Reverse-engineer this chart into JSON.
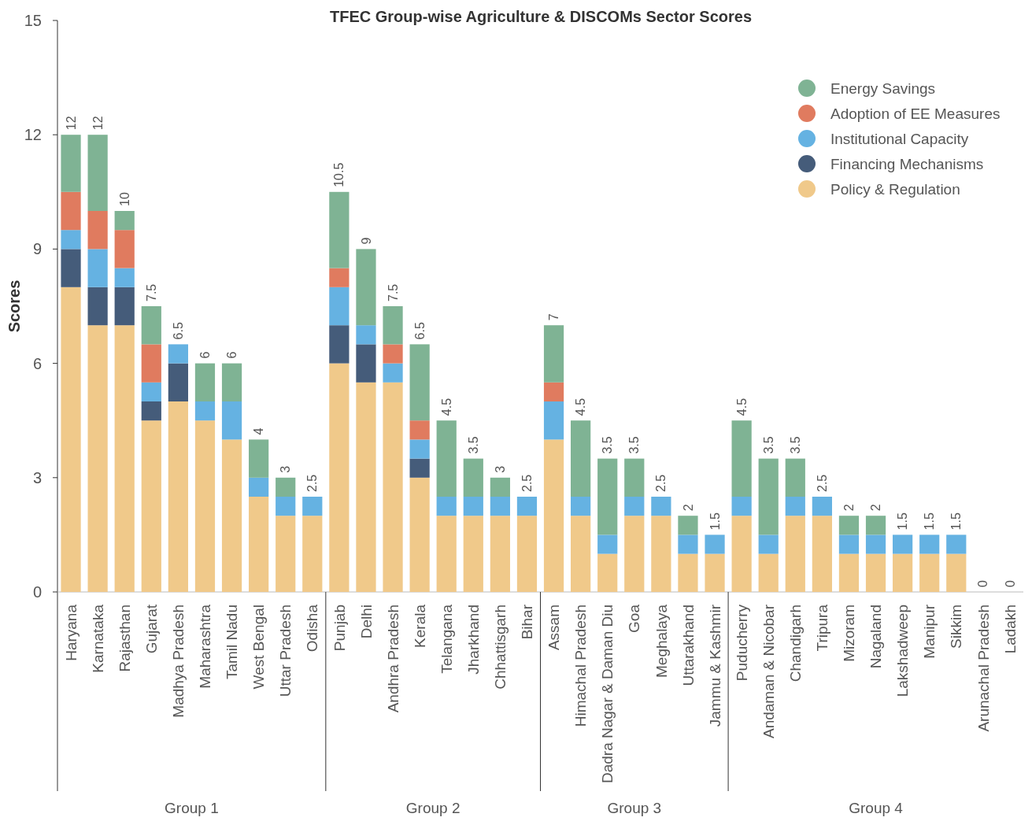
{
  "chart_data": {
    "type": "bar",
    "stacked": true,
    "title": "TFEC Group-wise Agriculture & DISCOMs Sector Scores",
    "ylabel": "Scores",
    "categories": [
      "Haryana",
      "Karnataka",
      "Rajasthan",
      "Gujarat",
      "Madhya Pradesh",
      "Maharashtra",
      "Tamil Nadu",
      "West Bengal",
      "Uttar Pradesh",
      "Odisha",
      "Punjab",
      "Delhi",
      "Andhra Pradesh",
      "Kerala",
      "Telangana",
      "Jharkhand",
      "Chhattisgarh",
      "Bihar",
      "Assam",
      "Himachal Pradesh",
      "Dadra Nagar & Daman Diu",
      "Goa",
      "Meghalaya",
      "Uttarakhand",
      "Jammu & Kashmir",
      "Puducherry",
      "Andaman & Nicobar",
      "Chandigarh",
      "Tripura",
      "Mizoram",
      "Nagaland",
      "Lakshadweep",
      "Manipur",
      "Sikkim",
      "Arunachal Pradesh",
      "Ladakh"
    ],
    "series": [
      {
        "name": "Policy & Regulation",
        "color": "#f0c98a",
        "values": [
          8,
          7,
          7,
          4.5,
          5,
          4.5,
          4,
          2.5,
          2,
          2,
          6,
          5.5,
          5.5,
          3,
          2,
          2,
          2,
          2,
          4,
          2,
          1,
          2,
          2,
          1,
          1,
          2,
          1,
          2,
          2,
          1,
          1,
          1,
          1,
          1,
          0,
          0
        ]
      },
      {
        "name": "Financing Mechanisms",
        "color": "#455c7a",
        "values": [
          1,
          1,
          1,
          0.5,
          1,
          0,
          0,
          0,
          0,
          0,
          1,
          1,
          0,
          0.5,
          0,
          0,
          0,
          0,
          0,
          0,
          0,
          0,
          0,
          0,
          0,
          0,
          0,
          0,
          0,
          0,
          0,
          0,
          0,
          0,
          0,
          0
        ]
      },
      {
        "name": "Institutional Capacity",
        "color": "#65b2e2",
        "values": [
          0.5,
          1,
          0.5,
          0.5,
          0.5,
          0.5,
          1,
          0.5,
          0.5,
          0.5,
          1,
          0.5,
          0.5,
          0.5,
          0.5,
          0.5,
          0.5,
          0.5,
          1,
          0.5,
          0.5,
          0.5,
          0.5,
          0.5,
          0.5,
          0.5,
          0.5,
          0.5,
          0.5,
          0.5,
          0.5,
          0.5,
          0.5,
          0.5,
          0,
          0
        ]
      },
      {
        "name": "Adoption of EE Measures",
        "color": "#e07b5f",
        "values": [
          1,
          1,
          1,
          1,
          0,
          0,
          0,
          0,
          0,
          0,
          0.5,
          0,
          0.5,
          0.5,
          0,
          0,
          0,
          0,
          0.5,
          0,
          0,
          0,
          0,
          0,
          0,
          0,
          0,
          0,
          0,
          0,
          0,
          0,
          0,
          0,
          0,
          0
        ]
      },
      {
        "name": "Energy Savings",
        "color": "#7fb394",
        "values": [
          1.5,
          2,
          0.5,
          1,
          0,
          1,
          1,
          1,
          0.5,
          0,
          2,
          2,
          1,
          2,
          2,
          1,
          0.5,
          0,
          1.5,
          2,
          2,
          1,
          0,
          0.5,
          0,
          2,
          2,
          1,
          0,
          0.5,
          0.5,
          0,
          0,
          0,
          0,
          0
        ]
      }
    ],
    "totals": [
      "12",
      "12",
      "10",
      "7.5",
      "6.5",
      "6",
      "6",
      "4",
      "3",
      "2.5",
      "10.5",
      "9",
      "7.5",
      "6.5",
      "4.5",
      "3.5",
      "3",
      "2.5",
      "7",
      "4.5",
      "3.5",
      "3.5",
      "2.5",
      "2",
      "1.5",
      "4.5",
      "3.5",
      "3.5",
      "2.5",
      "2",
      "2",
      "1.5",
      "1.5",
      "1.5",
      "0",
      "0"
    ],
    "ylim": [
      0,
      15
    ],
    "yticks": [
      0,
      3,
      6,
      9,
      12,
      15
    ],
    "grid": false,
    "legend": "top right",
    "annotations": [
      "Group 1",
      "Group 2",
      "Group 3",
      "Group 4"
    ]
  }
}
